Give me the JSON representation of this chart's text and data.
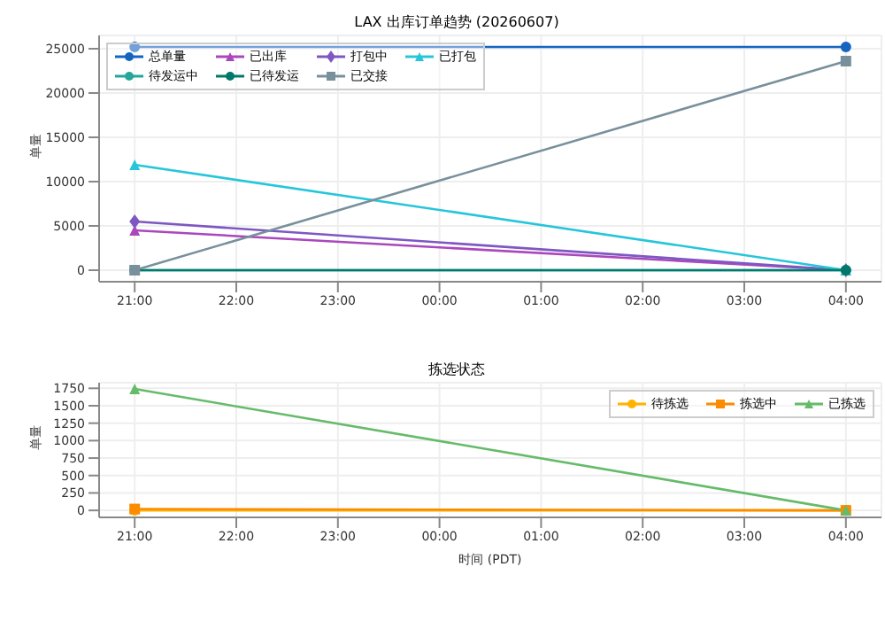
{
  "chart_data": [
    {
      "type": "line",
      "title": "LAX 出库订单趋势 (20260607)",
      "ylabel": "单量",
      "x": [
        "2026-06-07T21:00",
        "2026-06-08T04:00"
      ],
      "xlim": [
        "2026-06-07T20:39",
        "2026-06-08T04:21"
      ],
      "xticks": [
        {
          "value": "2026-06-07T21:00",
          "label": "21:00"
        },
        {
          "value": "2026-06-07T22:00",
          "label": "22:00"
        },
        {
          "value": "2026-06-07T23:00",
          "label": "23:00"
        },
        {
          "value": "2026-06-08T00:00",
          "label": "00:00"
        },
        {
          "value": "2026-06-08T01:00",
          "label": "01:00"
        },
        {
          "value": "2026-06-08T02:00",
          "label": "02:00"
        },
        {
          "value": "2026-06-08T03:00",
          "label": "03:00"
        },
        {
          "value": "2026-06-08T04:00",
          "label": "04:00"
        }
      ],
      "ylim": [
        -1300,
        26500
      ],
      "yticks": [
        0,
        5000,
        10000,
        15000,
        20000,
        25000
      ],
      "grid": true,
      "legend": "top left",
      "series": [
        {
          "name": "总单量",
          "color": "#1565c0",
          "marker": "circle",
          "values": [
            25200,
            25200
          ]
        },
        {
          "name": "已出库",
          "color": "#ab47bc",
          "marker": "triangle",
          "values": [
            4500,
            0
          ]
        },
        {
          "name": "打包中",
          "color": "#7e57c2",
          "marker": "diamond",
          "values": [
            5500,
            0
          ]
        },
        {
          "name": "已打包",
          "color": "#26c6da",
          "marker": "triangle",
          "values": [
            11900,
            0
          ]
        },
        {
          "name": "待发运中",
          "color": "#26a69a",
          "marker": "circle",
          "values": [
            0,
            0
          ]
        },
        {
          "name": "已待发运",
          "color": "#00796b",
          "marker": "circle",
          "values": [
            0,
            0
          ]
        },
        {
          "name": "已交接",
          "color": "#78909c",
          "marker": "square",
          "values": [
            0,
            23600
          ]
        }
      ]
    },
    {
      "type": "line",
      "title": "拣选状态",
      "xlabel": "时间 (PDT)",
      "ylabel": "单量",
      "x": [
        "2026-06-07T21:00",
        "2026-06-08T04:00"
      ],
      "xlim": [
        "2026-06-07T20:39",
        "2026-06-08T04:21"
      ],
      "xticks": [
        {
          "value": "2026-06-07T21:00",
          "label": "21:00"
        },
        {
          "value": "2026-06-07T22:00",
          "label": "22:00"
        },
        {
          "value": "2026-06-07T23:00",
          "label": "23:00"
        },
        {
          "value": "2026-06-08T00:00",
          "label": "00:00"
        },
        {
          "value": "2026-06-08T01:00",
          "label": "01:00"
        },
        {
          "value": "2026-06-08T02:00",
          "label": "02:00"
        },
        {
          "value": "2026-06-08T03:00",
          "label": "03:00"
        },
        {
          "value": "2026-06-08T04:00",
          "label": "04:00"
        }
      ],
      "ylim": [
        -100,
        1830
      ],
      "yticks": [
        0,
        250,
        500,
        750,
        1000,
        1250,
        1500,
        1750
      ],
      "grid": true,
      "legend": "top right",
      "series": [
        {
          "name": "待拣选",
          "color": "#ffb300",
          "marker": "circle",
          "values": [
            0,
            0
          ]
        },
        {
          "name": "拣选中",
          "color": "#fb8c00",
          "marker": "square",
          "values": [
            20,
            0
          ]
        },
        {
          "name": "已拣选",
          "color": "#66bb6a",
          "marker": "triangle",
          "values": [
            1740,
            0
          ]
        }
      ]
    }
  ]
}
